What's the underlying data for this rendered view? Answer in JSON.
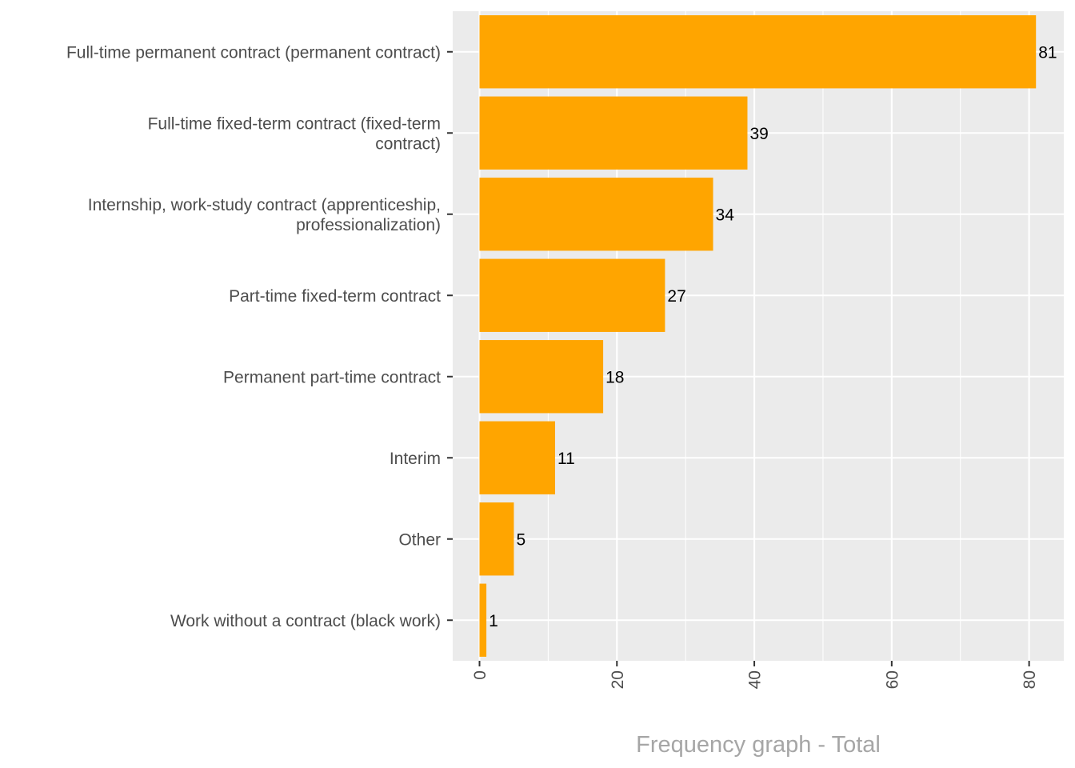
{
  "chart_data": {
    "type": "bar",
    "orientation": "horizontal",
    "categories": [
      [
        "Full-time permanent contract (permanent contract)"
      ],
      [
        "Full-time fixed-term contract (fixed-term",
        "contract)"
      ],
      [
        "Internship, work-study contract (apprenticeship,",
        "professionalization)"
      ],
      [
        "Part-time fixed-term contract"
      ],
      [
        "Permanent part-time contract"
      ],
      [
        "Interim"
      ],
      [
        "Other"
      ],
      [
        "Work without a contract (black work)"
      ]
    ],
    "values": [
      81,
      39,
      34,
      27,
      18,
      11,
      5,
      1
    ],
    "data_labels": [
      "81",
      "39",
      "34",
      "27",
      "18",
      "11",
      "5",
      "1"
    ],
    "x_ticks": [
      0,
      20,
      40,
      60,
      80
    ],
    "x_tick_labels": [
      "0",
      "20",
      "40",
      "60",
      "80"
    ],
    "xlim": [
      -3.9,
      85.05
    ],
    "xlabel": "Frequency graph - Total",
    "ylabel": "",
    "title": "",
    "bar_color": "#ffa500",
    "panel_color": "#ebebeb",
    "grid": true
  }
}
